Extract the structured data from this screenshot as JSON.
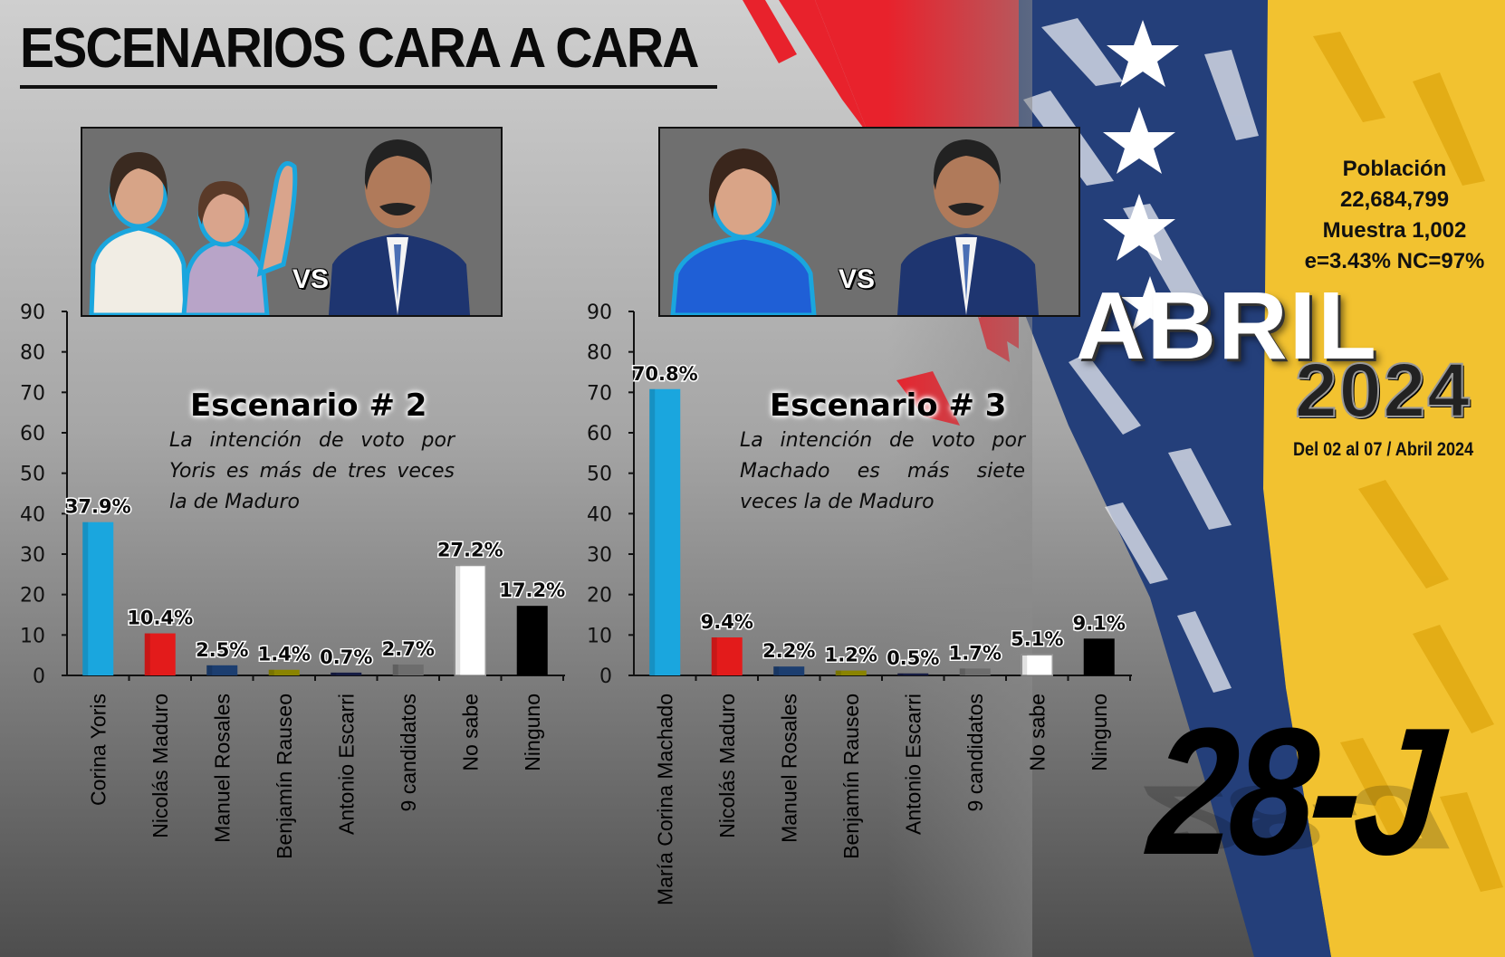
{
  "header": {
    "title": "ESCENARIOS CARA A CARA"
  },
  "vs_label": "VS",
  "scenarios": [
    {
      "title": "Escenario # 2",
      "text": "La intención de voto por Yoris es más de tres veces la de Maduro"
    },
    {
      "title": "Escenario # 3",
      "text": "La intención de voto por Machado es más siete veces la de Maduro"
    }
  ],
  "info": {
    "population_label": "Población",
    "population_value": "22,684,799",
    "sample": "Muestra 1,002",
    "error": "e=3.43%  NC=97%"
  },
  "period": {
    "month": "ABRIL",
    "year": "2024",
    "dates": "Del 02 al 07 / Abril 2024"
  },
  "brand": "28-J",
  "colors": {
    "background_light": "#c8c8c8",
    "background_dark": "#555555",
    "flag_red": "#e8222c",
    "flag_blue": "#243f7a",
    "flag_yellow": "#f2c230",
    "bar_blue": "#1aa6de",
    "bar_red": "#e31b1b",
    "bar_navy": "#1c3e70",
    "bar_olive": "#8a8400",
    "bar_darknavy": "#161c44",
    "bar_gray": "#6d6d6d",
    "bar_white": "#ffffff",
    "bar_black": "#000000"
  },
  "chart_data": [
    {
      "type": "bar",
      "title": "Escenario # 2",
      "categories": [
        "Corina Yoris",
        "Nicolás Maduro",
        "Manuel Rosales",
        "Benjamín Rauseo",
        "Antonio Escarri",
        "9 candidatos",
        "No sabe",
        "Ninguno"
      ],
      "values": [
        37.9,
        10.4,
        2.5,
        1.4,
        0.7,
        2.7,
        27.2,
        17.2
      ],
      "labels": [
        "37.9%",
        "10.4%",
        "2.5%",
        "1.4%",
        "0.7%",
        "2.7%",
        "27.2%",
        "17.2%"
      ],
      "bar_colors": [
        "bar_blue",
        "bar_red",
        "bar_navy",
        "bar_olive",
        "bar_darknavy",
        "bar_gray",
        "bar_white",
        "bar_black"
      ],
      "yticks": [
        0,
        10,
        20,
        30,
        40,
        50,
        60,
        70,
        80,
        90
      ],
      "ylim": [
        0,
        90
      ],
      "xlabel": "",
      "ylabel": "",
      "grid": false
    },
    {
      "type": "bar",
      "title": "Escenario # 3",
      "categories": [
        "María Corina Machado",
        "Nicolás Maduro",
        "Manuel Rosales",
        "Benjamín Rauseo",
        "Antonio Escarri",
        "9 candidatos",
        "No sabe",
        "Ninguno"
      ],
      "values": [
        70.8,
        9.4,
        2.2,
        1.2,
        0.5,
        1.7,
        5.1,
        9.1
      ],
      "labels": [
        "70.8%",
        "9.4%",
        "2.2%",
        "1.2%",
        "0.5%",
        "1.7%",
        "5.1%",
        "9.1%"
      ],
      "bar_colors": [
        "bar_blue",
        "bar_red",
        "bar_navy",
        "bar_olive",
        "bar_darknavy",
        "bar_gray",
        "bar_white",
        "bar_black"
      ],
      "yticks": [
        0,
        10,
        20,
        30,
        40,
        50,
        60,
        70,
        80,
        90
      ],
      "ylim": [
        0,
        90
      ],
      "xlabel": "",
      "ylabel": "",
      "grid": false
    }
  ]
}
